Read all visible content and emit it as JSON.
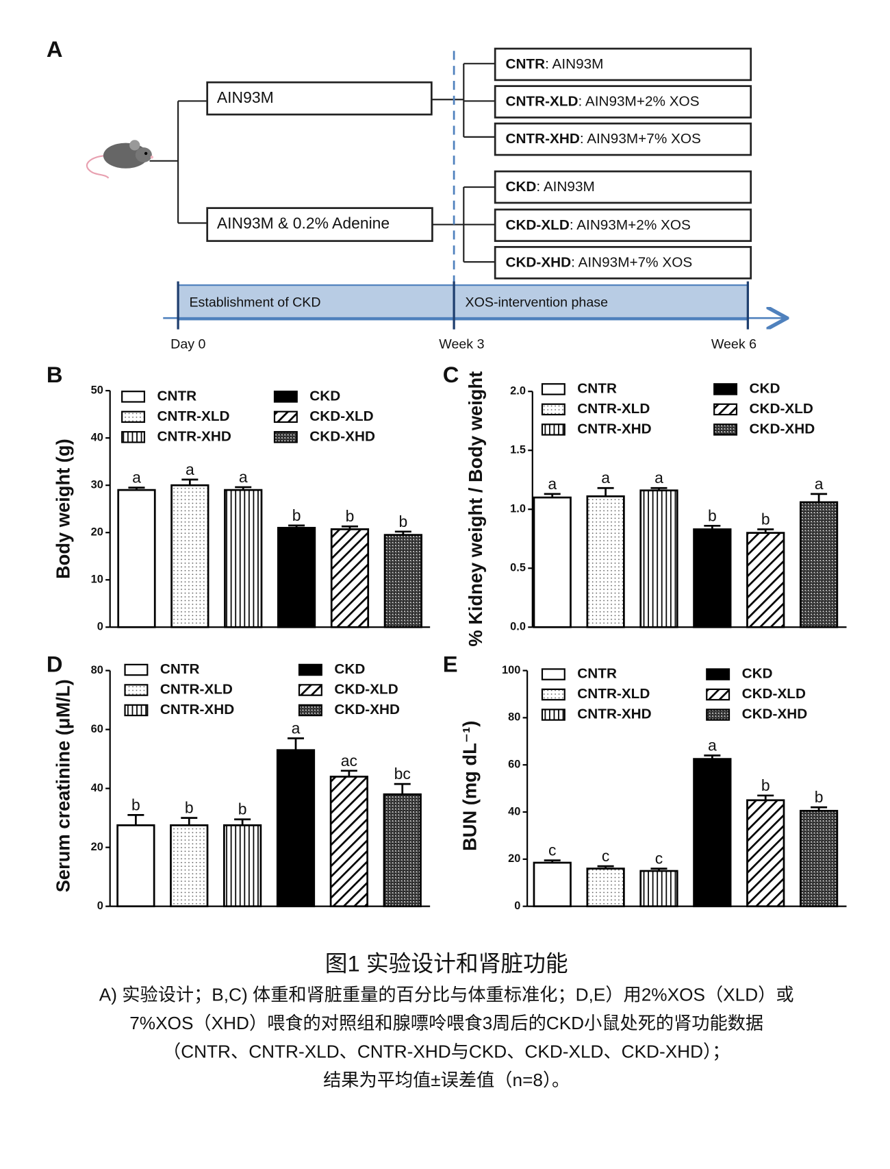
{
  "diagram": {
    "label": "A",
    "diets": [
      "AIN93M",
      "AIN93M & 0.2% Adenine"
    ],
    "groups": [
      {
        "name": "CNTR",
        "diet": ": AIN93M"
      },
      {
        "name": "CNTR-XLD",
        "diet": ": AIN93M+2% XOS"
      },
      {
        "name": "CNTR-XHD",
        "diet": ": AIN93M+7% XOS"
      },
      {
        "name": "CKD",
        "diet": ": AIN93M"
      },
      {
        "name": "CKD-XLD",
        "diet": ": AIN93M+2% XOS"
      },
      {
        "name": "CKD-XHD",
        "diet": ": AIN93M+7% XOS"
      }
    ],
    "phases": [
      "Establishment of CKD",
      "XOS-intervention phase"
    ],
    "timepoints": [
      "Day 0",
      "Week 3",
      "Week 6"
    ]
  },
  "chart_data": [
    {
      "type": "bar",
      "panel": "B",
      "ylabel": "Body weight (g)",
      "categories": [
        "CNTR",
        "CNTR-XLD",
        "CNTR-XHD",
        "CKD",
        "CKD-XLD",
        "CKD-XHD"
      ],
      "patterns": [
        "none",
        "dots",
        "vertical",
        "solid",
        "diagonal",
        "checker"
      ],
      "values": [
        29,
        30,
        29,
        21,
        20.7,
        19.5
      ],
      "errors": [
        0.5,
        1.2,
        0.6,
        0.5,
        0.6,
        0.7
      ],
      "labels": [
        "a",
        "a",
        "a",
        "b",
        "b",
        "b"
      ],
      "ylim": [
        0,
        50
      ],
      "yticks": [
        0,
        10,
        20,
        30,
        40,
        50
      ],
      "grid": false
    },
    {
      "type": "bar",
      "panel": "C",
      "ylabel": "% Kidney weight / Body weight",
      "categories": [
        "CNTR",
        "CNTR-XLD",
        "CNTR-XHD",
        "CKD",
        "CKD-XLD",
        "CKD-XHD"
      ],
      "patterns": [
        "none",
        "dots",
        "vertical",
        "solid",
        "diagonal",
        "checker"
      ],
      "values": [
        1.1,
        1.11,
        1.16,
        0.83,
        0.8,
        1.06
      ],
      "errors": [
        0.03,
        0.07,
        0.02,
        0.03,
        0.03,
        0.07
      ],
      "labels": [
        "a",
        "a",
        "a",
        "b",
        "b",
        "a"
      ],
      "ylim": [
        0,
        2
      ],
      "yticks": [
        {
          "value": 0,
          "label": "0.0"
        },
        {
          "value": 0.5,
          "label": "0.5"
        },
        {
          "value": 1,
          "label": "1.0"
        },
        {
          "value": 1.5,
          "label": "1.5"
        },
        {
          "value": 2,
          "label": "2.0"
        }
      ],
      "grid": false
    },
    {
      "type": "bar",
      "panel": "D",
      "ylabel": "Serum creatinine (μM/L)",
      "categories": [
        "CNTR",
        "CNTR-XLD",
        "CNTR-XHD",
        "CKD",
        "CKD-XLD",
        "CKD-XHD"
      ],
      "patterns": [
        "none",
        "dots",
        "vertical",
        "solid",
        "diagonal",
        "checker"
      ],
      "values": [
        27.5,
        27.5,
        27.5,
        53,
        44,
        38
      ],
      "errors": [
        3.5,
        2.5,
        2,
        4,
        2,
        3.5
      ],
      "labels": [
        "b",
        "b",
        "b",
        "a",
        "ac",
        "bc"
      ],
      "ylim": [
        0,
        80
      ],
      "yticks": [
        0,
        20,
        40,
        60,
        80
      ],
      "grid": false
    },
    {
      "type": "bar",
      "panel": "E",
      "ylabel": "BUN (mg dL⁻¹)",
      "categories": [
        "CNTR",
        "CNTR-XLD",
        "CNTR-XHD",
        "CKD",
        "CKD-XLD",
        "CKD-XHD"
      ],
      "patterns": [
        "none",
        "dots",
        "vertical",
        "solid",
        "diagonal",
        "checker"
      ],
      "values": [
        18.5,
        16,
        15,
        62.5,
        45,
        40.5
      ],
      "errors": [
        1,
        1,
        1,
        1.5,
        2,
        1.5
      ],
      "labels": [
        "c",
        "c",
        "c",
        "a",
        "b",
        "b"
      ],
      "ylim": [
        0,
        100
      ],
      "yticks": [
        0,
        20,
        40,
        60,
        80,
        100
      ],
      "grid": false
    }
  ],
  "caption": {
    "title": "图1 实验设计和肾脏功能",
    "lines": [
      "A) 实验设计；B,C) 体重和肾脏重量的百分比与体重标准化；D,E）用2%XOS（XLD）或",
      "7%XOS（XHD）喂食的对照组和腺嘌呤喂食3周后的CKD小鼠处死的肾功能数据",
      "（CNTR、CNTR-XLD、CNTR-XHD与CKD、CKD-XLD、CKD-XHD）；",
      "结果为平均值±误差值（n=8）。"
    ]
  }
}
